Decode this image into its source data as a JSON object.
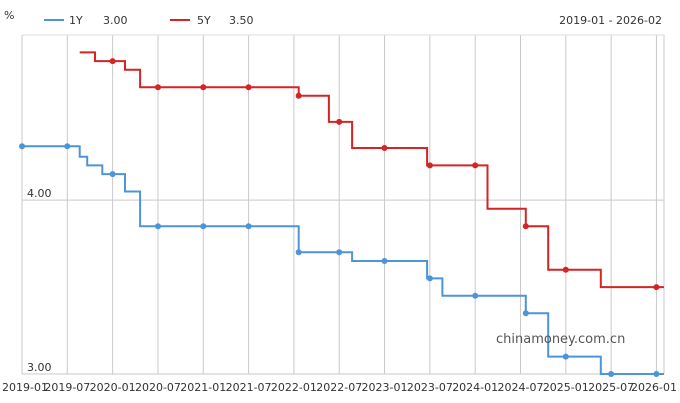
{
  "chart_data": {
    "type": "line",
    "unit_label": "%",
    "date_range_label": "2019-01 - 2026-02",
    "watermark": "chinamoney.com.cn",
    "x_ticks": [
      "2019-01",
      "2019-07",
      "2020-01",
      "2020-07",
      "2021-01",
      "2021-07",
      "2022-01",
      "2022-07",
      "2023-01",
      "2023-07",
      "2024-01",
      "2024-07",
      "2025-01",
      "2025-07",
      "2026-01"
    ],
    "x_range": [
      "2019-01",
      "2026-02"
    ],
    "y_tick_values": [
      3.0,
      4.0
    ],
    "y_tick_labels": [
      "3.00",
      "4.00"
    ],
    "ylim": [
      3.0,
      4.95
    ],
    "grid": true,
    "legend_position": "top-left",
    "series": [
      {
        "name": "1Y",
        "latest_label": "3.00",
        "color": "#4d94d8",
        "steps": [
          {
            "date": "2019-01-01",
            "value": 4.31
          },
          {
            "date": "2019-08-20",
            "value": 4.25
          },
          {
            "date": "2019-09-20",
            "value": 4.2
          },
          {
            "date": "2019-11-20",
            "value": 4.15
          },
          {
            "date": "2020-02-20",
            "value": 4.05
          },
          {
            "date": "2020-04-20",
            "value": 3.85
          },
          {
            "date": "2022-01-20",
            "value": 3.7
          },
          {
            "date": "2022-08-22",
            "value": 3.65
          },
          {
            "date": "2023-06-20",
            "value": 3.55
          },
          {
            "date": "2023-08-21",
            "value": 3.45
          },
          {
            "date": "2024-07-22",
            "value": 3.35
          },
          {
            "date": "2024-10-21",
            "value": 3.1
          },
          {
            "date": "2025-05-20",
            "value": 3.0
          }
        ],
        "markers": [
          {
            "date": "2019-01-01",
            "value": 4.31
          },
          {
            "date": "2019-07-01",
            "value": 4.31
          },
          {
            "date": "2020-01-01",
            "value": 4.15
          },
          {
            "date": "2020-07-01",
            "value": 3.85
          },
          {
            "date": "2021-01-01",
            "value": 3.85
          },
          {
            "date": "2021-07-01",
            "value": 3.85
          },
          {
            "date": "2022-01-20",
            "value": 3.7
          },
          {
            "date": "2022-07-01",
            "value": 3.7
          },
          {
            "date": "2023-01-01",
            "value": 3.65
          },
          {
            "date": "2023-07-01",
            "value": 3.55
          },
          {
            "date": "2024-01-01",
            "value": 3.45
          },
          {
            "date": "2024-07-22",
            "value": 3.35
          },
          {
            "date": "2025-01-01",
            "value": 3.1
          },
          {
            "date": "2025-07-01",
            "value": 3.0
          },
          {
            "date": "2026-01-01",
            "value": 3.0
          }
        ]
      },
      {
        "name": "5Y",
        "latest_label": "3.50",
        "color": "#d42424",
        "steps": [
          {
            "date": "2019-08-20",
            "value": 4.85
          },
          {
            "date": "2019-10-21",
            "value": 4.8
          },
          {
            "date": "2020-02-20",
            "value": 4.75
          },
          {
            "date": "2020-04-20",
            "value": 4.65
          },
          {
            "date": "2022-01-20",
            "value": 4.6
          },
          {
            "date": "2022-05-20",
            "value": 4.45
          },
          {
            "date": "2022-08-22",
            "value": 4.3
          },
          {
            "date": "2023-06-20",
            "value": 4.2
          },
          {
            "date": "2024-02-20",
            "value": 3.95
          },
          {
            "date": "2024-07-22",
            "value": 3.85
          },
          {
            "date": "2024-10-21",
            "value": 3.6
          },
          {
            "date": "2025-05-20",
            "value": 3.5
          }
        ],
        "end_date": "2026-02-01",
        "markers": [
          {
            "date": "2020-01-01",
            "value": 4.8
          },
          {
            "date": "2020-07-01",
            "value": 4.65
          },
          {
            "date": "2021-01-01",
            "value": 4.65
          },
          {
            "date": "2021-07-01",
            "value": 4.65
          },
          {
            "date": "2022-01-20",
            "value": 4.6
          },
          {
            "date": "2022-07-01",
            "value": 4.45
          },
          {
            "date": "2023-01-01",
            "value": 4.3
          },
          {
            "date": "2023-07-01",
            "value": 4.2
          },
          {
            "date": "2024-01-01",
            "value": 4.2
          },
          {
            "date": "2024-07-22",
            "value": 3.85
          },
          {
            "date": "2025-01-01",
            "value": 3.6
          },
          {
            "date": "2026-01-01",
            "value": 3.5
          }
        ]
      }
    ]
  }
}
